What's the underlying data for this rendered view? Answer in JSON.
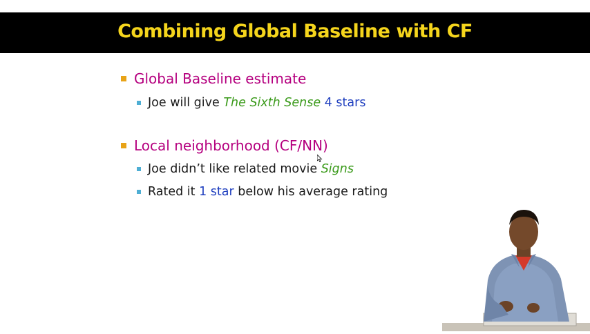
{
  "slide": {
    "title": "Combining Global Baseline with CF",
    "bullets": [
      {
        "label": "Global Baseline estimate",
        "subs": [
          {
            "parts": [
              "Joe will give ",
              "The Sixth Sense",
              " ",
              "4 stars"
            ]
          }
        ]
      },
      {
        "label": "Local neighborhood (CF/NN)",
        "subs": [
          {
            "parts": [
              "Joe didn’t like related movie ",
              "Signs"
            ]
          },
          {
            "parts": [
              "Rated it ",
              "1 star",
              " below his average rating"
            ]
          }
        ]
      }
    ]
  },
  "colors": {
    "title": "#f5d51c",
    "title_bar": "#000000",
    "level1_text": "#b5007f",
    "level1_bullet": "#e8a317",
    "level2_bullet": "#4eaed4",
    "movie_title": "#3a9a1a",
    "rating": "#1f3fbf"
  },
  "icons": {
    "speaker": "presenter-video-overlay",
    "cursor": "mouse-pointer-icon"
  }
}
